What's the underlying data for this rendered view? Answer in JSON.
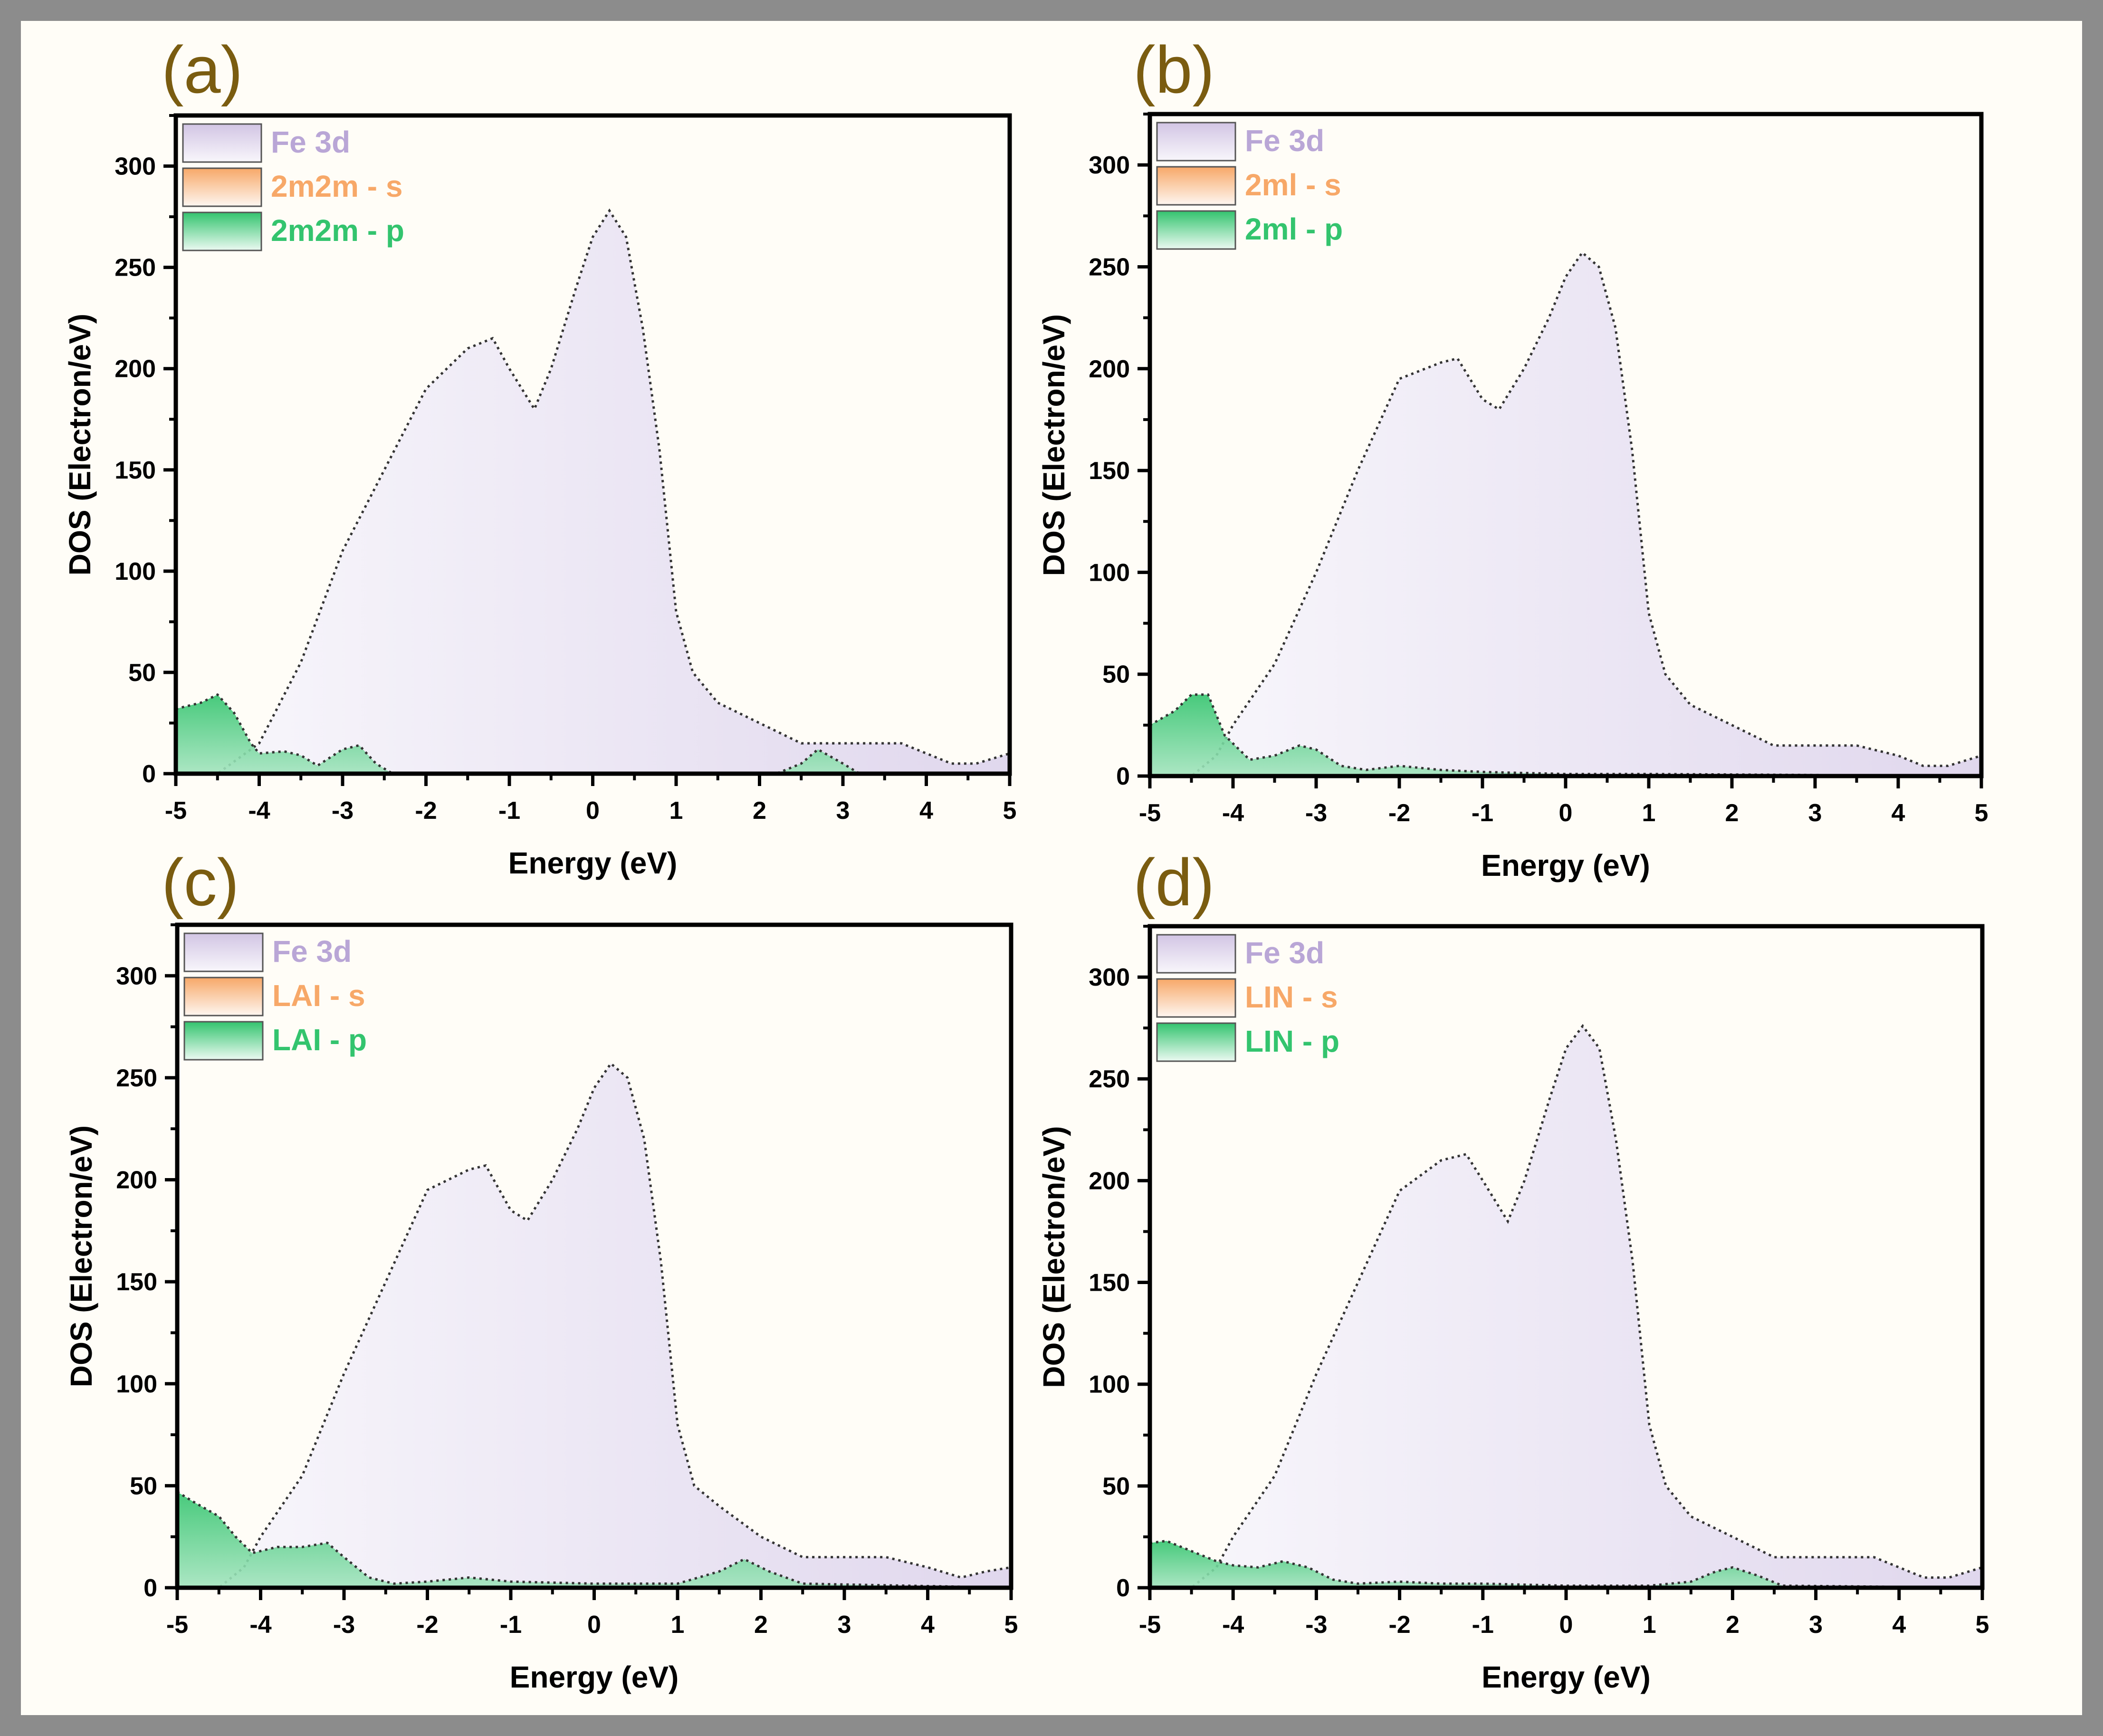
{
  "figure": {
    "frame_color": "#8c8c8c",
    "background_color": "#fffdf7",
    "panel_label_color": "#7a5c10",
    "colors": {
      "fe3d": "#b9a6d6",
      "s": "#f7a868",
      "p": "#33c46e"
    }
  },
  "chart_data": [
    {
      "type": "area",
      "panel_label": "(a)",
      "xlabel": "Energy (eV)",
      "ylabel": "DOS (Electron/eV)",
      "xlim": [
        -5,
        5
      ],
      "ylim": [
        0,
        325
      ],
      "xticks": [
        -5,
        -4,
        -3,
        -2,
        -1,
        0,
        1,
        2,
        3,
        4,
        5
      ],
      "xtick_labels": [
        "-5",
        "-4",
        "-3",
        "-2",
        "-1",
        "0",
        "1",
        "2",
        "3",
        "4",
        "5"
      ],
      "yticks": [
        0,
        50,
        100,
        150,
        200,
        250,
        300
      ],
      "ytick_labels": [
        "0",
        "50",
        "100",
        "150",
        "200",
        "250",
        "300"
      ],
      "legend_position": "top-left",
      "series": [
        {
          "name": "Fe 3d",
          "legend": "Fe 3d",
          "color_key": "fe3d",
          "x": [
            -5,
            -4.5,
            -4,
            -3.5,
            -3,
            -2.5,
            -2,
            -1.5,
            -1.2,
            -1,
            -0.7,
            -0.5,
            -0.2,
            0,
            0.2,
            0.4,
            0.6,
            0.8,
            1.0,
            1.2,
            1.5,
            2,
            2.5,
            3,
            3.5,
            3.7,
            4,
            4.3,
            4.6,
            5
          ],
          "y": [
            0,
            0,
            15,
            55,
            110,
            150,
            190,
            210,
            215,
            200,
            180,
            200,
            240,
            265,
            278,
            265,
            220,
            160,
            80,
            50,
            35,
            25,
            15,
            15,
            15,
            15,
            10,
            5,
            5,
            10
          ]
        },
        {
          "name": "2m2m - s",
          "legend": "2m2m - s",
          "color_key": "s",
          "x": [
            -5,
            5
          ],
          "y": [
            0,
            0
          ]
        },
        {
          "name": "2m2m - p",
          "legend": "2m2m - p",
          "color_key": "p",
          "x": [
            -5,
            -4.7,
            -4.5,
            -4.3,
            -4.1,
            -4,
            -3.7,
            -3.5,
            -3.3,
            -3,
            -2.8,
            -2.6,
            -2.4,
            2.2,
            2.5,
            2.7,
            3.0,
            3.2,
            5
          ],
          "y": [
            32,
            35,
            39,
            30,
            15,
            10,
            11,
            9,
            4,
            12,
            14,
            5,
            0,
            0,
            5,
            12,
            5,
            0,
            0
          ]
        }
      ]
    },
    {
      "type": "area",
      "panel_label": "(b)",
      "xlabel": "Energy (eV)",
      "ylabel": "DOS (Electron/eV)",
      "xlim": [
        -5,
        5
      ],
      "ylim": [
        0,
        325
      ],
      "xticks": [
        -5,
        -4,
        -3,
        -2,
        -1,
        0,
        1,
        2,
        3,
        4,
        5
      ],
      "xtick_labels": [
        "-5",
        "-4",
        "-3",
        "-2",
        "-1",
        "0",
        "1",
        "2",
        "3",
        "4",
        "5"
      ],
      "yticks": [
        0,
        50,
        100,
        150,
        200,
        250,
        300
      ],
      "ytick_labels": [
        "0",
        "50",
        "100",
        "150",
        "200",
        "250",
        "300"
      ],
      "legend_position": "top-left",
      "series": [
        {
          "name": "Fe 3d",
          "legend": "Fe 3d",
          "color_key": "fe3d",
          "x": [
            -5,
            -4.5,
            -4.2,
            -4,
            -3.5,
            -3,
            -2.5,
            -2,
            -1.5,
            -1.3,
            -1,
            -0.8,
            -0.5,
            -0.2,
            0,
            0.2,
            0.4,
            0.6,
            0.8,
            1.0,
            1.2,
            1.5,
            2,
            2.5,
            3,
            3.5,
            4,
            4.3,
            4.6,
            5
          ],
          "y": [
            0,
            0,
            10,
            25,
            55,
            100,
            150,
            195,
            203,
            205,
            185,
            180,
            200,
            225,
            245,
            257,
            250,
            220,
            160,
            80,
            50,
            35,
            25,
            15,
            15,
            15,
            10,
            5,
            5,
            10
          ]
        },
        {
          "name": "2ml - s",
          "legend": "2ml - s",
          "color_key": "s",
          "x": [
            -5,
            5
          ],
          "y": [
            0,
            0
          ]
        },
        {
          "name": "2ml - p",
          "legend": "2ml - p",
          "color_key": "p",
          "x": [
            -5,
            -4.7,
            -4.5,
            -4.3,
            -4.1,
            -3.8,
            -3.5,
            -3.2,
            -3,
            -2.7,
            -2.4,
            -2,
            -1.5,
            -1,
            0,
            1,
            5
          ],
          "y": [
            25,
            32,
            40,
            40,
            20,
            8,
            10,
            15,
            13,
            5,
            3,
            5,
            3,
            2,
            1,
            1,
            0
          ]
        }
      ]
    },
    {
      "type": "area",
      "panel_label": "(c)",
      "xlabel": "Energy (eV)",
      "ylabel": "DOS (Electron/eV)",
      "xlim": [
        -5,
        5
      ],
      "ylim": [
        0,
        325
      ],
      "xticks": [
        -5,
        -4,
        -3,
        -2,
        -1,
        0,
        1,
        2,
        3,
        4,
        5
      ],
      "xtick_labels": [
        "-5",
        "-4",
        "-3",
        "-2",
        "-1",
        "0",
        "1",
        "2",
        "3",
        "4",
        "5"
      ],
      "yticks": [
        0,
        50,
        100,
        150,
        200,
        250,
        300
      ],
      "ytick_labels": [
        "0",
        "50",
        "100",
        "150",
        "200",
        "250",
        "300"
      ],
      "legend_position": "top-left",
      "series": [
        {
          "name": "Fe 3d",
          "legend": "Fe 3d",
          "color_key": "fe3d",
          "x": [
            -5,
            -4.5,
            -4.2,
            -4,
            -3.5,
            -3,
            -2.5,
            -2,
            -1.5,
            -1.3,
            -1,
            -0.8,
            -0.5,
            -0.2,
            0,
            0.2,
            0.4,
            0.6,
            0.8,
            1.0,
            1.2,
            1.5,
            2,
            2.5,
            3,
            3.5,
            4,
            4.4,
            4.7,
            5
          ],
          "y": [
            0,
            0,
            10,
            25,
            55,
            105,
            150,
            195,
            205,
            207,
            185,
            180,
            200,
            225,
            245,
            257,
            250,
            220,
            160,
            80,
            50,
            40,
            25,
            15,
            15,
            15,
            10,
            5,
            8,
            10
          ]
        },
        {
          "name": "LAI - s",
          "legend": "LAI - s",
          "color_key": "s",
          "x": [
            -5,
            5
          ],
          "y": [
            0,
            0
          ]
        },
        {
          "name": "LAI - p",
          "legend": "LAI - p",
          "color_key": "p",
          "x": [
            -5,
            -4.8,
            -4.5,
            -4.3,
            -4.1,
            -3.8,
            -3.5,
            -3.2,
            -3,
            -2.7,
            -2.4,
            -2,
            -1.5,
            -1,
            0,
            1,
            1.5,
            1.8,
            2.1,
            2.5,
            5
          ],
          "y": [
            47,
            42,
            35,
            25,
            17,
            20,
            20,
            22,
            15,
            5,
            2,
            3,
            5,
            3,
            2,
            2,
            8,
            14,
            8,
            2,
            0
          ]
        }
      ]
    },
    {
      "type": "area",
      "panel_label": "(d)",
      "xlabel": "Energy (eV)",
      "ylabel": "DOS (Electron/eV)",
      "xlim": [
        -5,
        5
      ],
      "ylim": [
        0,
        325
      ],
      "xticks": [
        -5,
        -4,
        -3,
        -2,
        -1,
        0,
        1,
        2,
        3,
        4,
        5
      ],
      "xtick_labels": [
        "-5",
        "-4",
        "-3",
        "-2",
        "-1",
        "0",
        "1",
        "2",
        "3",
        "4",
        "5"
      ],
      "yticks": [
        0,
        50,
        100,
        150,
        200,
        250,
        300
      ],
      "ytick_labels": [
        "0",
        "50",
        "100",
        "150",
        "200",
        "250",
        "300"
      ],
      "legend_position": "top-left",
      "series": [
        {
          "name": "Fe 3d",
          "legend": "Fe 3d",
          "color_key": "fe3d",
          "x": [
            -5,
            -4.5,
            -4.2,
            -4,
            -3.5,
            -3,
            -2.5,
            -2,
            -1.5,
            -1.2,
            -1,
            -0.7,
            -0.5,
            -0.2,
            0,
            0.2,
            0.4,
            0.6,
            0.8,
            1.0,
            1.2,
            1.5,
            2,
            2.5,
            3,
            3.5,
            3.7,
            4,
            4.3,
            4.6,
            5
          ],
          "y": [
            0,
            0,
            10,
            25,
            55,
            105,
            150,
            195,
            210,
            213,
            200,
            180,
            200,
            240,
            265,
            276,
            265,
            220,
            160,
            80,
            50,
            35,
            25,
            15,
            15,
            15,
            15,
            10,
            5,
            5,
            10
          ]
        },
        {
          "name": "LIN - s",
          "legend": "LIN - s",
          "color_key": "s",
          "x": [
            -5,
            5
          ],
          "y": [
            0,
            0
          ]
        },
        {
          "name": "LIN - p",
          "legend": "LIN - p",
          "color_key": "p",
          "x": [
            -5,
            -4.8,
            -4.5,
            -4.2,
            -4,
            -3.7,
            -3.4,
            -3.1,
            -2.8,
            -2.5,
            -2,
            -1.5,
            -1,
            0,
            1,
            1.5,
            1.8,
            2.0,
            2.3,
            2.6,
            5
          ],
          "y": [
            22,
            23,
            18,
            13,
            11,
            10,
            13,
            10,
            4,
            2,
            3,
            2,
            2,
            1,
            1,
            3,
            8,
            10,
            6,
            1,
            0
          ]
        }
      ]
    }
  ]
}
